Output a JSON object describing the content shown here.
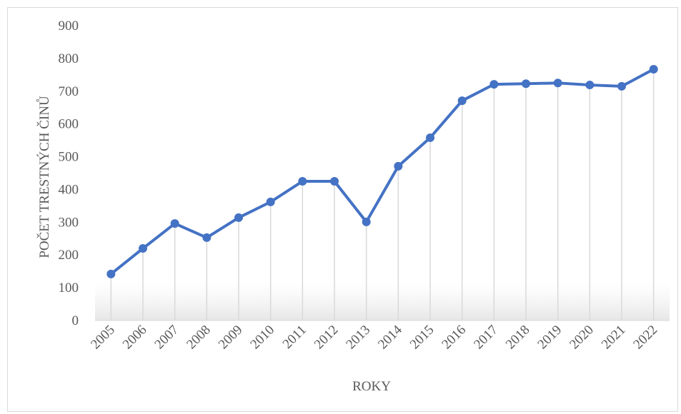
{
  "chart_data": {
    "type": "line",
    "x_label": "ROKY",
    "y_label": "POČET TRESTNÝCH ČINŮ",
    "categories": [
      "2005",
      "2006",
      "2007",
      "2008",
      "2009",
      "2010",
      "2011",
      "2012",
      "2013",
      "2014",
      "2015",
      "2016",
      "2017",
      "2018",
      "2019",
      "2020",
      "2021",
      "2022"
    ],
    "series": [
      {
        "name": "Počet trestných činů",
        "color": "#4472c4",
        "values": [
          142,
          220,
          296,
          253,
          314,
          362,
          425,
          425,
          301,
          471,
          558,
          671,
          721,
          723,
          725,
          719,
          715,
          767
        ]
      }
    ],
    "ylim": [
      0,
      900
    ],
    "yticks": [
      0,
      100,
      200,
      300,
      400,
      500,
      600,
      700,
      800,
      900
    ],
    "drop_lines": true,
    "legend": false
  }
}
